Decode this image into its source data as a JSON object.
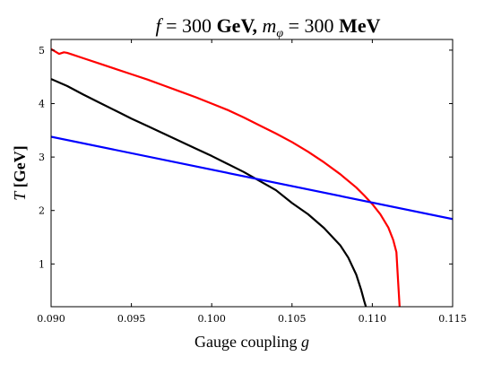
{
  "chart_data": {
    "type": "line",
    "title": "f = 300 GeV, m_φ = 300 MeV",
    "title_parts": {
      "f_symbol": "f",
      "f_value": " = 300 ",
      "f_unit": "GeV,",
      "m_symbol": "m",
      "m_sub": "φ",
      "m_value": " = 300 ",
      "m_unit": "MeV"
    },
    "xlabel": "Gauge coupling",
    "xlabel_symbol": "g",
    "ylabel": "T [GeV]",
    "ylabel_symbol": "T",
    "ylabel_unit": " [GeV]",
    "xlim": [
      0.09,
      0.115
    ],
    "ylim": [
      0.2,
      5.2
    ],
    "xticks": [
      0.09,
      0.095,
      0.1,
      0.105,
      0.11,
      0.115
    ],
    "xtick_labels": [
      "0.090",
      "0.095",
      "0.100",
      "0.105",
      "0.110",
      "0.115"
    ],
    "yticks": [
      1,
      2,
      3,
      4,
      5
    ],
    "ytick_labels": [
      "1",
      "2",
      "3",
      "4",
      "5"
    ],
    "grid": false,
    "series": [
      {
        "color": "#ff0000",
        "x": [
          0.09,
          0.0905,
          0.0908,
          0.091,
          0.0913,
          0.092,
          0.093,
          0.094,
          0.095,
          0.096,
          0.097,
          0.098,
          0.099,
          0.1,
          0.101,
          0.102,
          0.103,
          0.104,
          0.105,
          0.106,
          0.107,
          0.108,
          0.109,
          0.1095,
          0.11,
          0.1105,
          0.111,
          0.1113,
          0.1115,
          0.1116,
          0.1117
        ],
        "y": [
          5.02,
          4.93,
          4.96,
          4.95,
          4.92,
          4.85,
          4.75,
          4.65,
          4.55,
          4.45,
          4.34,
          4.23,
          4.12,
          4.0,
          3.88,
          3.74,
          3.59,
          3.44,
          3.28,
          3.1,
          2.9,
          2.68,
          2.43,
          2.28,
          2.12,
          1.93,
          1.68,
          1.45,
          1.22,
          0.7,
          0.2
        ]
      },
      {
        "color": "#000000",
        "x": [
          0.09,
          0.091,
          0.092,
          0.093,
          0.094,
          0.095,
          0.096,
          0.097,
          0.098,
          0.099,
          0.1,
          0.101,
          0.102,
          0.103,
          0.104,
          0.105,
          0.106,
          0.107,
          0.108,
          0.1085,
          0.109,
          0.1093,
          0.1095,
          0.1096
        ],
        "y": [
          4.46,
          4.33,
          4.17,
          4.02,
          3.87,
          3.72,
          3.58,
          3.44,
          3.3,
          3.16,
          3.02,
          2.87,
          2.72,
          2.55,
          2.38,
          2.14,
          1.93,
          1.67,
          1.35,
          1.12,
          0.8,
          0.52,
          0.3,
          0.2
        ]
      },
      {
        "color": "#0000ff",
        "x": [
          0.09,
          0.115
        ],
        "y": [
          3.38,
          1.84
        ]
      }
    ]
  }
}
